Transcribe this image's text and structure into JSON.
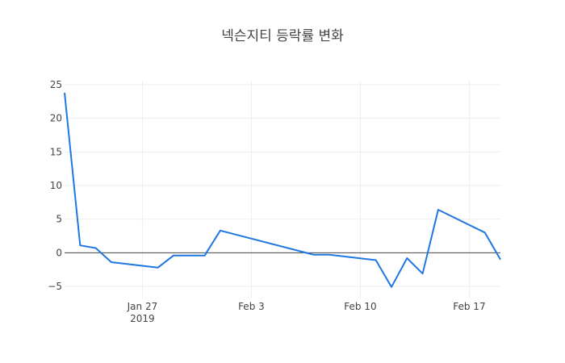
{
  "chart_data": {
    "type": "line",
    "title": "넥슨지티 등락률 변화",
    "xlabel": "",
    "ylabel": "",
    "x_range": [
      "2019-01-22",
      "2019-02-19"
    ],
    "ylim": [
      -6.8,
      25.6
    ],
    "y_ticks": [
      25,
      20,
      15,
      10,
      5,
      0,
      -5
    ],
    "y_tick_labels": [
      "25",
      "20",
      "15",
      "10",
      "5",
      "0",
      "−5"
    ],
    "x_ticks": [
      {
        "date": "2019-01-27",
        "label": "Jan 27",
        "sublabel": "2019"
      },
      {
        "date": "2019-02-03",
        "label": "Feb 3",
        "sublabel": ""
      },
      {
        "date": "2019-02-10",
        "label": "Feb 10",
        "sublabel": ""
      },
      {
        "date": "2019-02-17",
        "label": "Feb 17",
        "sublabel": ""
      }
    ],
    "grid": true,
    "zero_line": true,
    "line_color": "#1f77e0",
    "series": [
      {
        "name": "",
        "x": [
          "2019-01-22",
          "2019-01-23",
          "2019-01-24",
          "2019-01-25",
          "2019-01-28",
          "2019-01-29",
          "2019-01-30",
          "2019-01-31",
          "2019-02-01",
          "2019-02-07",
          "2019-02-08",
          "2019-02-11",
          "2019-02-12",
          "2019-02-13",
          "2019-02-14",
          "2019-02-15",
          "2019-02-18",
          "2019-02-19"
        ],
        "y": [
          23.8,
          1.1,
          0.7,
          -1.4,
          -2.2,
          -0.4,
          -0.4,
          -0.4,
          3.3,
          -0.3,
          -0.3,
          -1.1,
          -5.1,
          -0.8,
          -3.1,
          6.4,
          3.0,
          -1.0
        ]
      }
    ]
  }
}
